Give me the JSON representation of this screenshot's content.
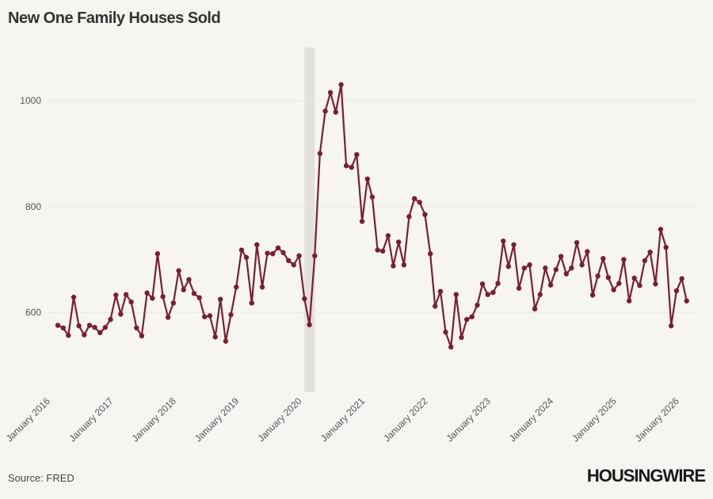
{
  "header": {
    "title": "New One Family Houses Sold"
  },
  "footer": {
    "source": "Source: FRED",
    "logo_text": "HOUSINGWIRE"
  },
  "colors": {
    "line": "#7a1f2f",
    "recession": "#e3e1de",
    "grid": "#ebe8e4",
    "background": "#f7f5f2"
  },
  "chart_data": {
    "type": "line",
    "title": "New One Family Houses Sold",
    "xlabel": "",
    "ylabel": "",
    "ylim": [
      450,
      1100
    ],
    "xlim": [
      "2016-01-01",
      "2026-05-01"
    ],
    "yticks": [
      600,
      800,
      1000
    ],
    "xticks": [
      {
        "date": "2016-01-01",
        "label": "January 2016"
      },
      {
        "date": "2017-01-01",
        "label": "January 2017"
      },
      {
        "date": "2018-01-01",
        "label": "January 2018"
      },
      {
        "date": "2019-01-01",
        "label": "January 2019"
      },
      {
        "date": "2020-01-01",
        "label": "January 2020"
      },
      {
        "date": "2021-01-01",
        "label": "January 2021"
      },
      {
        "date": "2022-01-01",
        "label": "January 2022"
      },
      {
        "date": "2023-01-01",
        "label": "January 2023"
      },
      {
        "date": "2024-01-01",
        "label": "January 2024"
      },
      {
        "date": "2025-01-01",
        "label": "January 2025"
      },
      {
        "date": "2026-01-01",
        "label": "January 2026"
      }
    ],
    "recession": {
      "start": "2020-02-01",
      "end": "2020-04-01"
    },
    "grid": true,
    "legend": "none",
    "series": [
      {
        "points": [
          [
            "2016-03-01",
            576
          ],
          [
            "2016-04-01",
            571
          ],
          [
            "2016-05-01",
            557
          ],
          [
            "2016-06-01",
            629
          ],
          [
            "2016-07-01",
            575
          ],
          [
            "2016-08-01",
            558
          ],
          [
            "2016-09-01",
            576
          ],
          [
            "2016-10-01",
            572
          ],
          [
            "2016-11-01",
            562
          ],
          [
            "2016-12-01",
            572
          ],
          [
            "2017-01-01",
            587
          ],
          [
            "2017-02-01",
            633
          ],
          [
            "2017-03-01",
            597
          ],
          [
            "2017-04-01",
            634
          ],
          [
            "2017-05-01",
            620
          ],
          [
            "2017-06-01",
            571
          ],
          [
            "2017-07-01",
            556
          ],
          [
            "2017-08-01",
            637
          ],
          [
            "2017-09-01",
            627
          ],
          [
            "2017-10-01",
            711
          ],
          [
            "2017-11-01",
            630
          ],
          [
            "2017-12-01",
            591
          ],
          [
            "2018-01-01",
            618
          ],
          [
            "2018-02-01",
            679
          ],
          [
            "2018-03-01",
            643
          ],
          [
            "2018-04-01",
            662
          ],
          [
            "2018-05-01",
            636
          ],
          [
            "2018-06-01",
            628
          ],
          [
            "2018-07-01",
            592
          ],
          [
            "2018-08-01",
            594
          ],
          [
            "2018-09-01",
            554
          ],
          [
            "2018-10-01",
            625
          ],
          [
            "2018-11-01",
            546
          ],
          [
            "2018-12-01",
            596
          ],
          [
            "2019-01-01",
            648
          ],
          [
            "2019-02-01",
            718
          ],
          [
            "2019-03-01",
            704
          ],
          [
            "2019-04-01",
            618
          ],
          [
            "2019-05-01",
            728
          ],
          [
            "2019-06-01",
            648
          ],
          [
            "2019-07-01",
            712
          ],
          [
            "2019-08-01",
            711
          ],
          [
            "2019-09-01",
            722
          ],
          [
            "2019-10-01",
            713
          ],
          [
            "2019-11-01",
            698
          ],
          [
            "2019-12-01",
            690
          ],
          [
            "2020-01-01",
            707
          ],
          [
            "2020-02-01",
            626
          ],
          [
            "2020-03-01",
            577
          ],
          [
            "2020-04-01",
            707
          ],
          [
            "2020-05-01",
            900
          ],
          [
            "2020-06-01",
            980
          ],
          [
            "2020-07-01",
            1015
          ],
          [
            "2020-08-01",
            978
          ],
          [
            "2020-09-01",
            1030
          ],
          [
            "2020-10-01",
            877
          ],
          [
            "2020-11-01",
            874
          ],
          [
            "2020-12-01",
            898
          ],
          [
            "2021-01-01",
            772
          ],
          [
            "2021-02-01",
            852
          ],
          [
            "2021-03-01",
            818
          ],
          [
            "2021-04-01",
            718
          ],
          [
            "2021-05-01",
            716
          ],
          [
            "2021-06-01",
            745
          ],
          [
            "2021-07-01",
            688
          ],
          [
            "2021-08-01",
            733
          ],
          [
            "2021-09-01",
            690
          ],
          [
            "2021-10-01",
            781
          ],
          [
            "2021-11-01",
            815
          ],
          [
            "2021-12-01",
            808
          ],
          [
            "2022-01-01",
            785
          ],
          [
            "2022-02-01",
            711
          ],
          [
            "2022-03-01",
            612
          ],
          [
            "2022-04-01",
            640
          ],
          [
            "2022-05-01",
            563
          ],
          [
            "2022-06-01",
            535
          ],
          [
            "2022-07-01",
            634
          ],
          [
            "2022-08-01",
            553
          ],
          [
            "2022-09-01",
            587
          ],
          [
            "2022-10-01",
            592
          ],
          [
            "2022-11-01",
            614
          ],
          [
            "2022-12-01",
            654
          ],
          [
            "2023-01-01",
            634
          ],
          [
            "2023-02-01",
            638
          ],
          [
            "2023-03-01",
            655
          ],
          [
            "2023-04-01",
            735
          ],
          [
            "2023-05-01",
            687
          ],
          [
            "2023-06-01",
            728
          ],
          [
            "2023-07-01",
            646
          ],
          [
            "2023-08-01",
            684
          ],
          [
            "2023-09-01",
            690
          ],
          [
            "2023-10-01",
            607
          ],
          [
            "2023-11-01",
            634
          ],
          [
            "2023-12-01",
            684
          ],
          [
            "2024-01-01",
            652
          ],
          [
            "2024-02-01",
            681
          ],
          [
            "2024-03-01",
            706
          ],
          [
            "2024-04-01",
            673
          ],
          [
            "2024-05-01",
            684
          ],
          [
            "2024-06-01",
            732
          ],
          [
            "2024-07-01",
            690
          ],
          [
            "2024-08-01",
            715
          ],
          [
            "2024-09-01",
            633
          ],
          [
            "2024-10-01",
            669
          ],
          [
            "2024-11-01",
            702
          ],
          [
            "2024-12-01",
            666
          ],
          [
            "2025-01-01",
            643
          ],
          [
            "2025-02-01",
            655
          ],
          [
            "2025-03-01",
            700
          ],
          [
            "2025-04-01",
            622
          ],
          [
            "2025-05-01",
            665
          ],
          [
            "2025-06-01",
            651
          ],
          [
            "2025-07-01",
            698
          ],
          [
            "2025-08-01",
            714
          ],
          [
            "2025-09-01",
            654
          ],
          [
            "2025-10-01",
            757
          ],
          [
            "2025-11-01",
            723
          ],
          [
            "2025-12-01",
            575
          ],
          [
            "2026-01-01",
            641
          ],
          [
            "2026-02-01",
            664
          ],
          [
            "2026-03-01",
            622
          ]
        ]
      }
    ]
  }
}
